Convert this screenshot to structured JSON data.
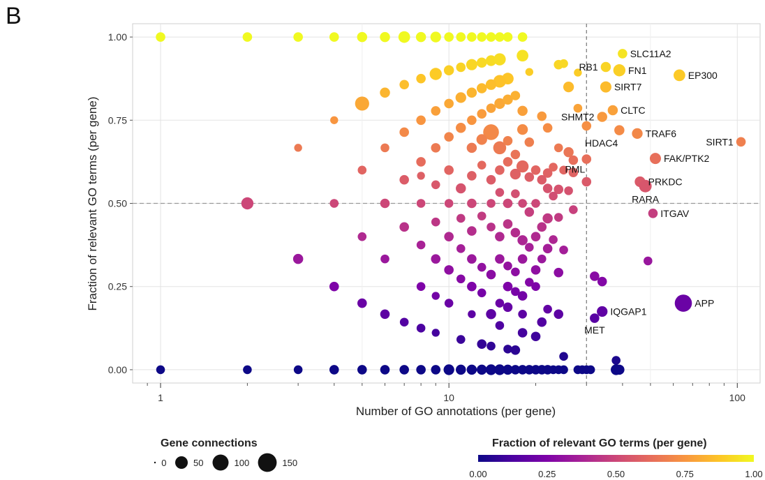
{
  "panel_label": "B",
  "chart_data": {
    "type": "scatter",
    "xlabel": "Number of GO annotations (per gene)",
    "ylabel": "Fraction of relevant GO terms (per gene)",
    "x_scale": "log10",
    "xlim": [
      0.8,
      120
    ],
    "ylim": [
      -0.04,
      1.04
    ],
    "x_ticks": [
      1,
      10,
      100
    ],
    "x_tick_labels": [
      "1",
      "10",
      "100"
    ],
    "y_ticks": [
      0,
      0.25,
      0.5,
      0.75,
      1
    ],
    "y_tick_labels": [
      "0.00",
      "0.25",
      "0.50",
      "0.75",
      "1.00"
    ],
    "grid": true,
    "reference_lines": {
      "x": 30,
      "y": 0.5
    },
    "color_scale": {
      "name": "plasma",
      "low": "#0d0887",
      "mid": "#cc4778",
      "high": "#f0f921",
      "range": [
        0,
        1
      ]
    },
    "size_legend": {
      "title": "Gene connections",
      "labels": [
        "0",
        "50",
        "100",
        "150"
      ],
      "values": [
        0,
        50,
        100,
        150
      ]
    },
    "color_legend": {
      "title": "Fraction of relevant GO terms (per gene)",
      "labels": [
        "0.00",
        "0.25",
        "0.50",
        "0.75",
        "1.00"
      ]
    },
    "labeled_points": [
      {
        "name": "SLC11A2",
        "x": 40,
        "y": 0.95,
        "size": 20,
        "label_side": "right"
      },
      {
        "name": "RB1",
        "x": 35,
        "y": 0.91,
        "size": 25,
        "label_side": "left"
      },
      {
        "name": "FN1",
        "x": 39,
        "y": 0.9,
        "size": 45,
        "label_side": "right"
      },
      {
        "name": "EP300",
        "x": 63,
        "y": 0.885,
        "size": 40,
        "label_side": "right"
      },
      {
        "name": "SIRT7",
        "x": 35,
        "y": 0.85,
        "size": 35,
        "label_side": "right"
      },
      {
        "name": "CLTC",
        "x": 37,
        "y": 0.78,
        "size": 25,
        "label_side": "right"
      },
      {
        "name": "SHMT2",
        "x": 34,
        "y": 0.76,
        "size": 25,
        "label_side": "left"
      },
      {
        "name": "TRAF6",
        "x": 45,
        "y": 0.71,
        "size": 30,
        "label_side": "right"
      },
      {
        "name": "HDAC4",
        "x": 39,
        "y": 0.72,
        "size": 25,
        "label_side": "below-left"
      },
      {
        "name": "SIRT1",
        "x": 103,
        "y": 0.685,
        "size": 20,
        "label_side": "left"
      },
      {
        "name": "FAK/PTK2",
        "x": 52,
        "y": 0.635,
        "size": 35,
        "label_side": "right"
      },
      {
        "name": "PML",
        "x": 30,
        "y": 0.565,
        "size": 20,
        "label_side": "above-left"
      },
      {
        "name": "PRKDC",
        "x": 46,
        "y": 0.565,
        "size": 30,
        "label_side": "right"
      },
      {
        "name": "RARA",
        "x": 48,
        "y": 0.552,
        "size": 50,
        "label_side": "below"
      },
      {
        "name": "ITGAV",
        "x": 51,
        "y": 0.47,
        "size": 20,
        "label_side": "right"
      },
      {
        "name": "APP",
        "x": 65,
        "y": 0.2,
        "size": 120,
        "label_side": "right"
      },
      {
        "name": "IQGAP1",
        "x": 34,
        "y": 0.175,
        "size": 30,
        "label_side": "right"
      },
      {
        "name": "MET",
        "x": 32,
        "y": 0.155,
        "size": 20,
        "label_side": "below"
      }
    ],
    "points": [
      {
        "x": 1,
        "y": 1.0,
        "size": 20
      },
      {
        "x": 2,
        "y": 1.0,
        "size": 20
      },
      {
        "x": 3,
        "y": 1.0,
        "size": 20
      },
      {
        "x": 4,
        "y": 1.0,
        "size": 20
      },
      {
        "x": 5,
        "y": 1.0,
        "size": 25
      },
      {
        "x": 6,
        "y": 1.0,
        "size": 25
      },
      {
        "x": 7,
        "y": 1.0,
        "size": 40
      },
      {
        "x": 8,
        "y": 1.0,
        "size": 25
      },
      {
        "x": 9,
        "y": 1.0,
        "size": 30
      },
      {
        "x": 10,
        "y": 1.0,
        "size": 20
      },
      {
        "x": 11,
        "y": 1.0,
        "size": 20
      },
      {
        "x": 12,
        "y": 1.0,
        "size": 20
      },
      {
        "x": 13,
        "y": 1.0,
        "size": 20
      },
      {
        "x": 14,
        "y": 1.0,
        "size": 20
      },
      {
        "x": 15,
        "y": 1.0,
        "size": 20
      },
      {
        "x": 16,
        "y": 1.0,
        "size": 20
      },
      {
        "x": 18,
        "y": 1.0,
        "size": 20
      },
      {
        "x": 10,
        "y": 0.9,
        "size": 25
      },
      {
        "x": 11,
        "y": 0.909,
        "size": 20
      },
      {
        "x": 12,
        "y": 0.917,
        "size": 35
      },
      {
        "x": 13,
        "y": 0.923,
        "size": 25
      },
      {
        "x": 14,
        "y": 0.929,
        "size": 30
      },
      {
        "x": 15,
        "y": 0.933,
        "size": 45
      },
      {
        "x": 18,
        "y": 0.944,
        "size": 40
      },
      {
        "x": 9,
        "y": 0.889,
        "size": 45
      },
      {
        "x": 8,
        "y": 0.875,
        "size": 20
      },
      {
        "x": 7,
        "y": 0.857,
        "size": 20
      },
      {
        "x": 6,
        "y": 0.833,
        "size": 25
      },
      {
        "x": 5,
        "y": 0.8,
        "size": 70
      },
      {
        "x": 19,
        "y": 0.895,
        "size": 10
      },
      {
        "x": 24,
        "y": 0.917,
        "size": 20
      },
      {
        "x": 25,
        "y": 0.92,
        "size": 15
      },
      {
        "x": 28,
        "y": 0.893,
        "size": 10
      },
      {
        "x": 26,
        "y": 0.85,
        "size": 30
      },
      {
        "x": 16,
        "y": 0.875,
        "size": 40
      },
      {
        "x": 15,
        "y": 0.867,
        "size": 50
      },
      {
        "x": 14,
        "y": 0.857,
        "size": 30
      },
      {
        "x": 13,
        "y": 0.846,
        "size": 25
      },
      {
        "x": 12,
        "y": 0.833,
        "size": 25
      },
      {
        "x": 11,
        "y": 0.818,
        "size": 30
      },
      {
        "x": 10,
        "y": 0.8,
        "size": 20
      },
      {
        "x": 9,
        "y": 0.778,
        "size": 20
      },
      {
        "x": 8,
        "y": 0.75,
        "size": 20
      },
      {
        "x": 7,
        "y": 0.714,
        "size": 20
      },
      {
        "x": 6,
        "y": 0.667,
        "size": 15
      },
      {
        "x": 4,
        "y": 0.75,
        "size": 10
      },
      {
        "x": 3,
        "y": 0.667,
        "size": 10
      },
      {
        "x": 11,
        "y": 0.727,
        "size": 25
      },
      {
        "x": 12,
        "y": 0.75,
        "size": 20
      },
      {
        "x": 13,
        "y": 0.769,
        "size": 20
      },
      {
        "x": 14,
        "y": 0.786,
        "size": 20
      },
      {
        "x": 15,
        "y": 0.8,
        "size": 30
      },
      {
        "x": 16,
        "y": 0.812,
        "size": 25
      },
      {
        "x": 17,
        "y": 0.824,
        "size": 20
      },
      {
        "x": 18,
        "y": 0.778,
        "size": 25
      },
      {
        "x": 21,
        "y": 0.762,
        "size": 20
      },
      {
        "x": 22,
        "y": 0.727,
        "size": 20
      },
      {
        "x": 28,
        "y": 0.786,
        "size": 15
      },
      {
        "x": 30,
        "y": 0.733,
        "size": 20
      },
      {
        "x": 14,
        "y": 0.714,
        "size": 95
      },
      {
        "x": 15,
        "y": 0.667,
        "size": 55
      },
      {
        "x": 13,
        "y": 0.692,
        "size": 30
      },
      {
        "x": 12,
        "y": 0.667,
        "size": 25
      },
      {
        "x": 10,
        "y": 0.7,
        "size": 20
      },
      {
        "x": 9,
        "y": 0.667,
        "size": 20
      },
      {
        "x": 8,
        "y": 0.625,
        "size": 20
      },
      {
        "x": 16,
        "y": 0.688,
        "size": 20
      },
      {
        "x": 17,
        "y": 0.647,
        "size": 20
      },
      {
        "x": 18,
        "y": 0.722,
        "size": 30
      },
      {
        "x": 19,
        "y": 0.684,
        "size": 20
      },
      {
        "x": 24,
        "y": 0.667,
        "size": 15
      },
      {
        "x": 26,
        "y": 0.654,
        "size": 25
      },
      {
        "x": 27,
        "y": 0.63,
        "size": 20
      },
      {
        "x": 30,
        "y": 0.633,
        "size": 20
      },
      {
        "x": 18,
        "y": 0.611,
        "size": 45
      },
      {
        "x": 17,
        "y": 0.588,
        "size": 30
      },
      {
        "x": 16,
        "y": 0.625,
        "size": 20
      },
      {
        "x": 20,
        "y": 0.6,
        "size": 20
      },
      {
        "x": 22,
        "y": 0.591,
        "size": 20
      },
      {
        "x": 23,
        "y": 0.609,
        "size": 15
      },
      {
        "x": 25,
        "y": 0.6,
        "size": 15
      },
      {
        "x": 27,
        "y": 0.593,
        "size": 20
      },
      {
        "x": 11,
        "y": 0.545,
        "size": 25
      },
      {
        "x": 12,
        "y": 0.583,
        "size": 20
      },
      {
        "x": 13,
        "y": 0.615,
        "size": 15
      },
      {
        "x": 14,
        "y": 0.571,
        "size": 20
      },
      {
        "x": 15,
        "y": 0.6,
        "size": 20
      },
      {
        "x": 10,
        "y": 0.6,
        "size": 20
      },
      {
        "x": 9,
        "y": 0.556,
        "size": 15
      },
      {
        "x": 8,
        "y": 0.583,
        "size": 10
      },
      {
        "x": 7,
        "y": 0.571,
        "size": 20
      },
      {
        "x": 6,
        "y": 0.5,
        "size": 20
      },
      {
        "x": 5,
        "y": 0.6,
        "size": 15
      },
      {
        "x": 4,
        "y": 0.5,
        "size": 15
      },
      {
        "x": 2,
        "y": 0.5,
        "size": 45
      },
      {
        "x": 19,
        "y": 0.579,
        "size": 20
      },
      {
        "x": 21,
        "y": 0.571,
        "size": 20
      },
      {
        "x": 24,
        "y": 0.542,
        "size": 20
      },
      {
        "x": 26,
        "y": 0.538,
        "size": 15
      },
      {
        "x": 22,
        "y": 0.545,
        "size": 20
      },
      {
        "x": 15,
        "y": 0.533,
        "size": 15
      },
      {
        "x": 16,
        "y": 0.5,
        "size": 20
      },
      {
        "x": 17,
        "y": 0.529,
        "size": 15
      },
      {
        "x": 18,
        "y": 0.5,
        "size": 15
      },
      {
        "x": 20,
        "y": 0.5,
        "size": 15
      },
      {
        "x": 23,
        "y": 0.522,
        "size": 15
      },
      {
        "x": 27,
        "y": 0.481,
        "size": 15
      },
      {
        "x": 12,
        "y": 0.5,
        "size": 20
      },
      {
        "x": 13,
        "y": 0.462,
        "size": 15
      },
      {
        "x": 14,
        "y": 0.5,
        "size": 15
      },
      {
        "x": 10,
        "y": 0.5,
        "size": 15
      },
      {
        "x": 9,
        "y": 0.444,
        "size": 15
      },
      {
        "x": 8,
        "y": 0.5,
        "size": 15
      },
      {
        "x": 7,
        "y": 0.429,
        "size": 20
      },
      {
        "x": 19,
        "y": 0.474,
        "size": 20
      },
      {
        "x": 21,
        "y": 0.429,
        "size": 20
      },
      {
        "x": 22,
        "y": 0.455,
        "size": 25
      },
      {
        "x": 24,
        "y": 0.458,
        "size": 15
      },
      {
        "x": 16,
        "y": 0.438,
        "size": 20
      },
      {
        "x": 17,
        "y": 0.412,
        "size": 20
      },
      {
        "x": 18,
        "y": 0.389,
        "size": 25
      },
      {
        "x": 15,
        "y": 0.4,
        "size": 20
      },
      {
        "x": 14,
        "y": 0.429,
        "size": 15
      },
      {
        "x": 12,
        "y": 0.417,
        "size": 20
      },
      {
        "x": 11,
        "y": 0.455,
        "size": 15
      },
      {
        "x": 10,
        "y": 0.4,
        "size": 20
      },
      {
        "x": 8,
        "y": 0.375,
        "size": 15
      },
      {
        "x": 5,
        "y": 0.4,
        "size": 15
      },
      {
        "x": 20,
        "y": 0.4,
        "size": 20
      },
      {
        "x": 23,
        "y": 0.391,
        "size": 15
      },
      {
        "x": 19,
        "y": 0.368,
        "size": 15
      },
      {
        "x": 22,
        "y": 0.364,
        "size": 20
      },
      {
        "x": 25,
        "y": 0.36,
        "size": 15
      },
      {
        "x": 6,
        "y": 0.333,
        "size": 15
      },
      {
        "x": 3,
        "y": 0.333,
        "size": 25
      },
      {
        "x": 9,
        "y": 0.333,
        "size": 20
      },
      {
        "x": 10,
        "y": 0.3,
        "size": 20
      },
      {
        "x": 11,
        "y": 0.364,
        "size": 15
      },
      {
        "x": 12,
        "y": 0.333,
        "size": 20
      },
      {
        "x": 13,
        "y": 0.308,
        "size": 15
      },
      {
        "x": 14,
        "y": 0.286,
        "size": 20
      },
      {
        "x": 15,
        "y": 0.333,
        "size": 20
      },
      {
        "x": 16,
        "y": 0.312,
        "size": 15
      },
      {
        "x": 17,
        "y": 0.294,
        "size": 15
      },
      {
        "x": 18,
        "y": 0.333,
        "size": 20
      },
      {
        "x": 20,
        "y": 0.3,
        "size": 20
      },
      {
        "x": 21,
        "y": 0.333,
        "size": 15
      },
      {
        "x": 24,
        "y": 0.292,
        "size": 20
      },
      {
        "x": 49,
        "y": 0.327,
        "size": 15
      },
      {
        "x": 32,
        "y": 0.281,
        "size": 20
      },
      {
        "x": 34,
        "y": 0.265,
        "size": 20
      },
      {
        "x": 4,
        "y": 0.25,
        "size": 20
      },
      {
        "x": 8,
        "y": 0.25,
        "size": 15
      },
      {
        "x": 12,
        "y": 0.25,
        "size": 20
      },
      {
        "x": 16,
        "y": 0.25,
        "size": 20
      },
      {
        "x": 20,
        "y": 0.25,
        "size": 15
      },
      {
        "x": 19,
        "y": 0.263,
        "size": 15
      },
      {
        "x": 18,
        "y": 0.222,
        "size": 20
      },
      {
        "x": 17,
        "y": 0.235,
        "size": 15
      },
      {
        "x": 15,
        "y": 0.2,
        "size": 15
      },
      {
        "x": 11,
        "y": 0.273,
        "size": 15
      },
      {
        "x": 9,
        "y": 0.222,
        "size": 10
      },
      {
        "x": 13,
        "y": 0.231,
        "size": 15
      },
      {
        "x": 5,
        "y": 0.2,
        "size": 20
      },
      {
        "x": 10,
        "y": 0.2,
        "size": 15
      },
      {
        "x": 6,
        "y": 0.167,
        "size": 20
      },
      {
        "x": 14,
        "y": 0.167,
        "size": 25
      },
      {
        "x": 16,
        "y": 0.188,
        "size": 20
      },
      {
        "x": 18,
        "y": 0.167,
        "size": 15
      },
      {
        "x": 21,
        "y": 0.143,
        "size": 20
      },
      {
        "x": 22,
        "y": 0.182,
        "size": 15
      },
      {
        "x": 24,
        "y": 0.167,
        "size": 20
      },
      {
        "x": 7,
        "y": 0.143,
        "size": 15
      },
      {
        "x": 8,
        "y": 0.125,
        "size": 15
      },
      {
        "x": 9,
        "y": 0.111,
        "size": 10
      },
      {
        "x": 11,
        "y": 0.091,
        "size": 15
      },
      {
        "x": 12,
        "y": 0.167,
        "size": 10
      },
      {
        "x": 13,
        "y": 0.077,
        "size": 20
      },
      {
        "x": 14,
        "y": 0.071,
        "size": 15
      },
      {
        "x": 15,
        "y": 0.133,
        "size": 15
      },
      {
        "x": 16,
        "y": 0.062,
        "size": 15
      },
      {
        "x": 17,
        "y": 0.059,
        "size": 20
      },
      {
        "x": 18,
        "y": 0.111,
        "size": 20
      },
      {
        "x": 20,
        "y": 0.1,
        "size": 20
      },
      {
        "x": 25,
        "y": 0.04,
        "size": 15
      },
      {
        "x": 38,
        "y": 0.028,
        "size": 15
      },
      {
        "x": 1,
        "y": 0.0,
        "size": 15
      },
      {
        "x": 2,
        "y": 0.0,
        "size": 15
      },
      {
        "x": 3,
        "y": 0.0,
        "size": 15
      },
      {
        "x": 4,
        "y": 0.0,
        "size": 20
      },
      {
        "x": 5,
        "y": 0.0,
        "size": 20
      },
      {
        "x": 6,
        "y": 0.0,
        "size": 20
      },
      {
        "x": 7,
        "y": 0.0,
        "size": 20
      },
      {
        "x": 8,
        "y": 0.0,
        "size": 20
      },
      {
        "x": 9,
        "y": 0.0,
        "size": 20
      },
      {
        "x": 10,
        "y": 0.0,
        "size": 30
      },
      {
        "x": 11,
        "y": 0.0,
        "size": 25
      },
      {
        "x": 12,
        "y": 0.0,
        "size": 25
      },
      {
        "x": 13,
        "y": 0.0,
        "size": 25
      },
      {
        "x": 14,
        "y": 0.0,
        "size": 30
      },
      {
        "x": 15,
        "y": 0.0,
        "size": 30
      },
      {
        "x": 16,
        "y": 0.0,
        "size": 25
      },
      {
        "x": 17,
        "y": 0.0,
        "size": 20
      },
      {
        "x": 18,
        "y": 0.0,
        "size": 20
      },
      {
        "x": 19,
        "y": 0.0,
        "size": 20
      },
      {
        "x": 20,
        "y": 0.0,
        "size": 20
      },
      {
        "x": 21,
        "y": 0.0,
        "size": 20
      },
      {
        "x": 22,
        "y": 0.0,
        "size": 20
      },
      {
        "x": 23,
        "y": 0.0,
        "size": 15
      },
      {
        "x": 24,
        "y": 0.0,
        "size": 15
      },
      {
        "x": 25,
        "y": 0.0,
        "size": 15
      },
      {
        "x": 28,
        "y": 0.0,
        "size": 15
      },
      {
        "x": 29,
        "y": 0.0,
        "size": 15
      },
      {
        "x": 30,
        "y": 0.0,
        "size": 15
      },
      {
        "x": 31,
        "y": 0.0,
        "size": 15
      },
      {
        "x": 38,
        "y": 0.0,
        "size": 30
      },
      {
        "x": 39,
        "y": 0.0,
        "size": 25
      }
    ]
  }
}
